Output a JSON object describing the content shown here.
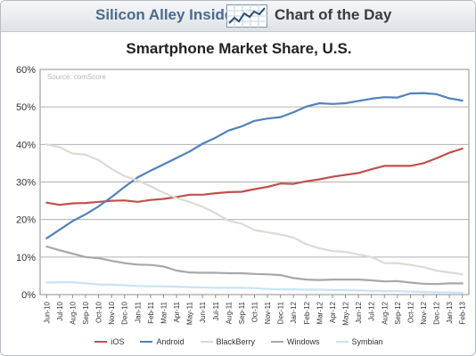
{
  "header": {
    "brand": "Silicon Alley Insider",
    "tagline": "Chart of the Day"
  },
  "chart_data": {
    "type": "line",
    "title": "Smartphone Market Share, U.S.",
    "source": "Source: comScore",
    "xlabel": "",
    "ylabel": "",
    "ylim": [
      0,
      60
    ],
    "yticks": [
      "0%",
      "10%",
      "20%",
      "30%",
      "40%",
      "50%",
      "60%"
    ],
    "grid": true,
    "legend_position": "bottom",
    "categories": [
      "Jun-10",
      "Jul-10",
      "Aug-10",
      "Sep-10",
      "Oct-10",
      "Nov-10",
      "Dec-10",
      "Jan-11",
      "Feb-11",
      "Mar-11",
      "Apr-11",
      "May-11",
      "Jun-11",
      "Jul-11",
      "Aug-11",
      "Sep-11",
      "Oct-11",
      "Nov-11",
      "Dec-11",
      "Jan-12",
      "Feb-12",
      "Mar-12",
      "Apr-12",
      "May-12",
      "Jun-12",
      "Jul-12",
      "Aug-12",
      "Sep-12",
      "Oct-12",
      "Nov-12",
      "Dec-12",
      "Jan-13",
      "Feb-13"
    ],
    "series": [
      {
        "name": "iOS",
        "color": "#c0504d",
        "values": [
          24.5,
          23.9,
          24.3,
          24.4,
          24.7,
          25.0,
          25.1,
          24.7,
          25.2,
          25.5,
          26.0,
          26.6,
          26.6,
          27.0,
          27.3,
          27.4,
          28.1,
          28.7,
          29.6,
          29.5,
          30.2,
          30.7,
          31.4,
          31.9,
          32.4,
          33.4,
          34.3,
          34.3,
          34.3,
          35.0,
          36.3,
          37.8,
          38.9
        ]
      },
      {
        "name": "Android",
        "color": "#4f81bd",
        "values": [
          15.0,
          17.3,
          19.6,
          21.4,
          23.5,
          26.0,
          28.7,
          31.2,
          33.0,
          34.7,
          36.4,
          38.1,
          40.2,
          41.8,
          43.7,
          44.8,
          46.3,
          46.9,
          47.3,
          48.6,
          50.1,
          51.0,
          50.8,
          51.0,
          51.6,
          52.2,
          52.6,
          52.5,
          53.6,
          53.7,
          53.4,
          52.3,
          51.7
        ]
      },
      {
        "name": "BlackBerry",
        "color": "#dedad2",
        "values": [
          40.0,
          39.3,
          37.6,
          37.3,
          35.8,
          33.5,
          31.6,
          30.4,
          28.9,
          27.1,
          25.7,
          24.7,
          23.4,
          21.7,
          19.7,
          18.9,
          17.2,
          16.6,
          16.0,
          15.2,
          13.4,
          12.3,
          11.6,
          11.4,
          10.7,
          10.0,
          8.4,
          8.4,
          7.9,
          7.3,
          6.4,
          5.9,
          5.4
        ]
      },
      {
        "name": "Windows",
        "color": "#a8a8a8",
        "values": [
          12.8,
          11.8,
          10.9,
          10.0,
          9.7,
          9.0,
          8.4,
          8.0,
          7.9,
          7.5,
          6.4,
          5.9,
          5.8,
          5.8,
          5.7,
          5.7,
          5.5,
          5.4,
          5.2,
          4.4,
          4.0,
          3.9,
          4.0,
          4.0,
          4.0,
          3.8,
          3.5,
          3.6,
          3.2,
          2.9,
          2.8,
          3.0,
          3.0
        ]
      },
      {
        "name": "Symbian",
        "color": "#c8e4f4",
        "values": [
          3.2,
          3.3,
          3.3,
          3.0,
          2.7,
          2.6,
          2.5,
          2.3,
          2.2,
          2.2,
          2.1,
          2.0,
          1.9,
          1.8,
          1.8,
          1.8,
          1.7,
          1.5,
          1.4,
          1.4,
          1.3,
          1.3,
          1.2,
          1.2,
          1.1,
          1.0,
          0.9,
          0.9,
          0.8,
          0.7,
          0.6,
          0.6,
          0.5
        ]
      }
    ]
  }
}
